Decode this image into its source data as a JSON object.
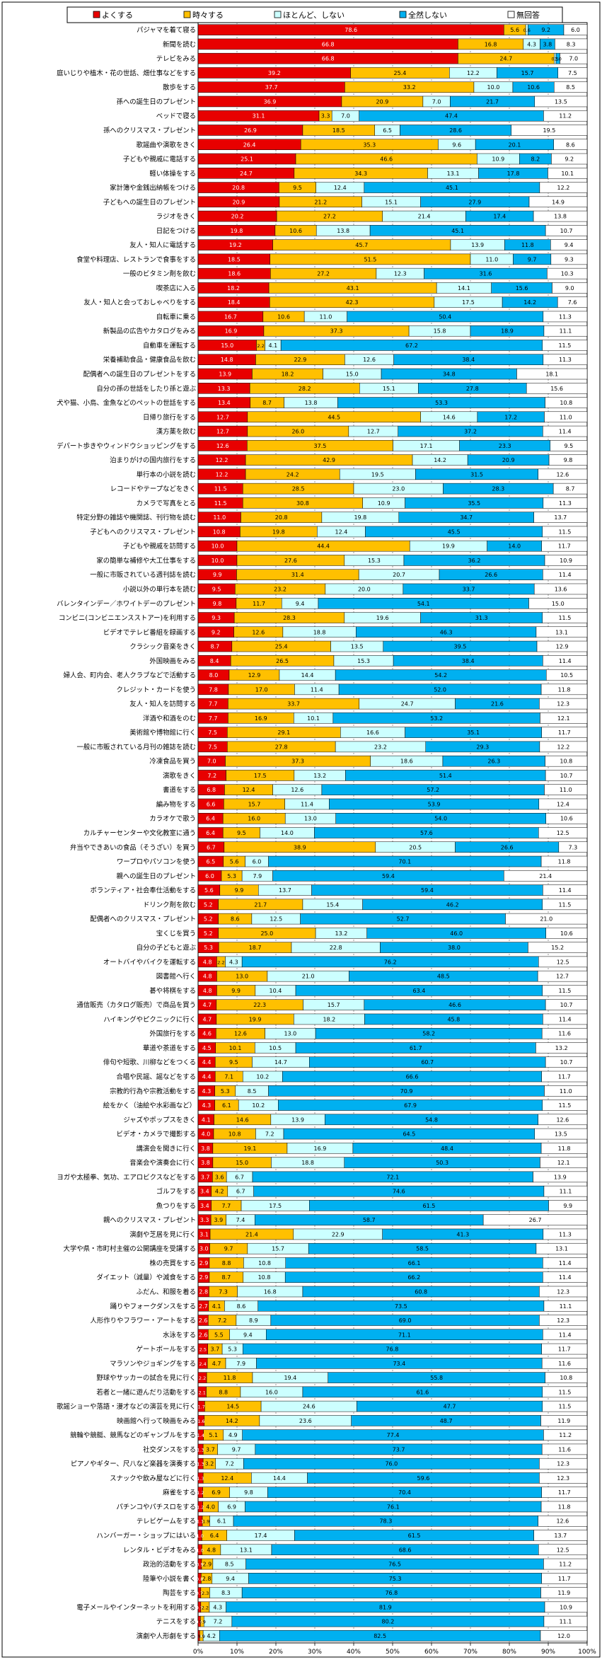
{
  "chart_data": {
    "type": "bar",
    "stacked": "percent",
    "orientation": "horizontal",
    "title": "",
    "xlabel": "",
    "ylabel": "",
    "xlim": [
      0,
      100
    ],
    "x_ticks": [
      "0%",
      "10%",
      "20%",
      "30%",
      "40%",
      "50%",
      "60%",
      "70%",
      "80%",
      "90%",
      "100%"
    ],
    "legend_position": "top",
    "series": [
      {
        "name": "よくする",
        "color": "#e80000"
      },
      {
        "name": "時々する",
        "color": "#ffc000"
      },
      {
        "name": "ほとんど、しない",
        "color": "#ccffff"
      },
      {
        "name": "全然しない",
        "color": "#00b0f0"
      },
      {
        "name": "無回答",
        "color": "#ffffff"
      }
    ],
    "categories": [
      "パジャマを着て寝る",
      "新聞を読む",
      "テレビをみる",
      "庭いじりや植木・花の世話、畑仕事などをする",
      "散歩をする",
      "孫への誕生日のプレゼント",
      "ベッドで寝る",
      "孫へのクリスマス・プレゼント",
      "歌謡曲や演歌をきく",
      "子どもや親戚に電話する",
      "軽い体操をする",
      "家計簿や金銭出納帳をつける",
      "子どもへの誕生日のプレゼント",
      "ラジオをきく",
      "日記をつける",
      "友人・知人に電話する",
      "食堂や料理店、レストランで食事をする",
      "一般のビタミン剤を飲む",
      "喫茶店に入る",
      "友人・知人と会っておしゃべりをする",
      "自転車に乗る",
      "新製品の広告やカタログをみる",
      "自動車を運転する",
      "栄養補助食品・健康食品を飲む",
      "配偶者への誕生日のプレゼントをする",
      "自分の孫の世話をしたり孫と遊ぶ",
      "犬や猫、小鳥、金魚などのペットの世話をする",
      "日帰り旅行をする",
      "漢方薬を飲む",
      "デパート歩きやウィンドウショッピングをする",
      "泊まりがけの国内旅行をする",
      "単行本の小説を読む",
      "レコードやテープなどをきく",
      "カメラで写真をとる",
      "特定分野の雑誌や機関誌、刊行物を読む",
      "子どもへのクリスマス・プレゼント",
      "子どもや親戚を訪問する",
      "家の簡単な補修や大工仕事をする",
      "一般に市販されている週刊誌を読む",
      "小説以外の単行本を読む",
      "バレンタインデー／ホワイトデーのプレゼント",
      "コンビニ(コンビニエンスストアー)を利用する",
      "ビデオでテレビ番組を録画する",
      "クラシック音楽をきく",
      "外国映画をみる",
      "婦人会、町内会、老人クラブなどで活動する",
      "クレジット・カードを使う",
      "友人・知人を訪問する",
      "洋酒や和酒をのむ",
      "美術館や博物館に行く",
      "一般に市販されている月刊の雑誌を読む",
      "冷凍食品を買う",
      "演歌をきく",
      "書道をする",
      "編み物をする",
      "カラオケで歌う",
      "カルチャーセンターや文化教室に通う",
      "弁当やできあいの食品（そうざい）を買う",
      "ワープロやパソコンを使う",
      "親への誕生日のプレゼント",
      "ボランティア・社会奉仕活動をする",
      "ドリンク剤を飲む",
      "配偶者へのクリスマス・プレゼント",
      "宝くじを買う",
      "自分の子どもと遊ぶ",
      "オートバイやバイクを運転する",
      "図書館へ行く",
      "碁や将棋をする",
      "通信販売（カタログ販売）で商品を買う",
      "ハイキングやピクニックに行く",
      "外国旅行をする",
      "華道や茶道をする",
      "俳句や短歌、川柳などをつくる",
      "合唱や民謡、謡などをする",
      "宗教的行為や宗教活動をする",
      "絵をかく（油絵や水彩画など）",
      "ジャズやポップスをきく",
      "ビデオ・カメラで撮影する",
      "講演会を聞きに行く",
      "音楽会や演奏会に行く",
      "ヨガや太極拳、気功、エアロビクスなどをする",
      "ゴルフをする",
      "魚つりをする",
      "親へのクリスマス・プレゼント",
      "演劇や芝居を見に行く",
      "大学や県・市町村主催の公開講座を受講する",
      "株の売買をする",
      "ダイエット（減量）や減食をする",
      "ふだん、和服を着る",
      "踊りやフォークダンスをする",
      "人形作りやフラワー・アートをする",
      "水泳をする",
      "ゲートボールをする",
      "マラソンやジョギングをする",
      "野球やサッカーの試合を見に行く",
      "若者と一緒に遊んだり活動をする",
      "歌謡ショーや落語・漫才などの演芸を見に行く",
      "映画館へ行って映画をみる",
      "競輪や競艇、競馬などのギャンブルをする",
      "社交ダンスをする",
      "ピアノやギター、尺八など楽器を演奏する",
      "スナックや飲み屋などに行く",
      "麻雀をする",
      "パチンコやパチスロをする",
      "テレビゲームをする",
      "ハンバーガー・ショップにはいる",
      "レンタル・ビデオをみる",
      "政治的活動をする",
      "陸筆や小説を書く",
      "陶芸をする",
      "電子メールやインターネットを利用する",
      "テニスをする",
      "演劇や人形劇をする"
    ],
    "values": [
      [
        78.6,
        5.6,
        0.6,
        9.2,
        6.0
      ],
      [
        66.8,
        16.8,
        4.3,
        3.8,
        8.3
      ],
      [
        66.8,
        24.7,
        0.5,
        1.0,
        7.0
      ],
      [
        39.2,
        25.4,
        12.2,
        15.7,
        7.5
      ],
      [
        37.7,
        33.2,
        10.0,
        10.6,
        8.5
      ],
      [
        36.9,
        20.9,
        7.0,
        21.7,
        13.5
      ],
      [
        31.1,
        3.3,
        7.0,
        47.4,
        11.2
      ],
      [
        26.9,
        18.5,
        6.5,
        28.6,
        19.5
      ],
      [
        26.4,
        35.3,
        9.6,
        20.1,
        8.6
      ],
      [
        25.1,
        46.6,
        10.9,
        8.2,
        9.2
      ],
      [
        24.7,
        34.3,
        13.1,
        17.8,
        10.1
      ],
      [
        20.8,
        9.5,
        12.4,
        45.1,
        12.2
      ],
      [
        20.9,
        21.2,
        15.1,
        27.9,
        14.9
      ],
      [
        20.2,
        27.2,
        21.4,
        17.4,
        13.8
      ],
      [
        19.8,
        10.6,
        13.8,
        45.1,
        10.7
      ],
      [
        19.2,
        45.7,
        13.9,
        11.8,
        9.4
      ],
      [
        18.5,
        51.5,
        11.0,
        9.7,
        9.3
      ],
      [
        18.6,
        27.2,
        12.3,
        31.6,
        10.3
      ],
      [
        18.2,
        43.1,
        14.1,
        15.6,
        9.0
      ],
      [
        18.4,
        42.3,
        17.5,
        14.2,
        7.6
      ],
      [
        16.7,
        10.6,
        11.0,
        50.4,
        11.3
      ],
      [
        16.9,
        37.3,
        15.8,
        18.9,
        11.1
      ],
      [
        15.0,
        2.2,
        4.1,
        67.2,
        11.5
      ],
      [
        14.8,
        22.9,
        12.6,
        38.4,
        11.3
      ],
      [
        13.9,
        18.2,
        15.0,
        34.8,
        18.1
      ],
      [
        13.3,
        28.2,
        15.1,
        27.8,
        15.6
      ],
      [
        13.4,
        8.7,
        13.8,
        53.3,
        10.8
      ],
      [
        12.7,
        44.5,
        14.6,
        17.2,
        11.0
      ],
      [
        12.7,
        26.0,
        12.7,
        37.2,
        11.4
      ],
      [
        12.6,
        37.5,
        17.1,
        23.3,
        9.5
      ],
      [
        12.2,
        42.9,
        14.2,
        20.9,
        9.8
      ],
      [
        12.2,
        24.2,
        19.5,
        31.5,
        12.6
      ],
      [
        11.5,
        28.5,
        23.0,
        28.3,
        8.7
      ],
      [
        11.5,
        30.8,
        10.9,
        35.5,
        11.3
      ],
      [
        11.0,
        20.8,
        19.8,
        34.7,
        13.7
      ],
      [
        10.8,
        19.8,
        12.4,
        45.5,
        11.5
      ],
      [
        10.0,
        44.4,
        19.9,
        14.0,
        11.7
      ],
      [
        10.0,
        27.6,
        15.3,
        36.2,
        10.9
      ],
      [
        9.9,
        31.4,
        20.7,
        26.6,
        11.4
      ],
      [
        9.5,
        23.2,
        20.0,
        33.7,
        13.6
      ],
      [
        9.8,
        11.7,
        9.4,
        54.1,
        15.0
      ],
      [
        9.3,
        28.3,
        19.6,
        31.3,
        11.5
      ],
      [
        9.2,
        12.6,
        18.8,
        46.3,
        13.1
      ],
      [
        8.7,
        25.4,
        13.5,
        39.5,
        12.9
      ],
      [
        8.4,
        26.5,
        15.3,
        38.4,
        11.4
      ],
      [
        8.0,
        12.9,
        14.4,
        54.2,
        10.5
      ],
      [
        7.8,
        17.0,
        11.4,
        52.0,
        11.8
      ],
      [
        7.7,
        33.7,
        24.7,
        21.6,
        12.3
      ],
      [
        7.7,
        16.9,
        10.1,
        53.2,
        12.1
      ],
      [
        7.5,
        29.1,
        16.6,
        35.1,
        11.7
      ],
      [
        7.5,
        27.8,
        23.2,
        29.3,
        12.2
      ],
      [
        7.0,
        37.3,
        18.6,
        26.3,
        10.8
      ],
      [
        7.2,
        17.5,
        13.2,
        51.4,
        10.7
      ],
      [
        6.8,
        12.4,
        12.6,
        57.2,
        11.0
      ],
      [
        6.6,
        15.7,
        11.4,
        53.9,
        12.4
      ],
      [
        6.4,
        16.0,
        13.0,
        54.0,
        10.6
      ],
      [
        6.4,
        9.5,
        14.0,
        57.6,
        12.5
      ],
      [
        6.7,
        38.9,
        20.5,
        26.6,
        7.3
      ],
      [
        6.5,
        5.6,
        6.0,
        70.1,
        11.8
      ],
      [
        6.0,
        5.3,
        7.9,
        59.4,
        21.4
      ],
      [
        5.6,
        9.9,
        13.7,
        59.4,
        11.4
      ],
      [
        5.2,
        21.7,
        15.4,
        46.2,
        11.5
      ],
      [
        5.2,
        8.6,
        12.5,
        52.7,
        21.0
      ],
      [
        5.2,
        25.0,
        13.2,
        46.0,
        10.6
      ],
      [
        5.3,
        18.7,
        22.8,
        38.0,
        15.2
      ],
      [
        4.8,
        2.2,
        4.3,
        76.2,
        12.5
      ],
      [
        4.8,
        13.0,
        21.0,
        48.5,
        12.7
      ],
      [
        4.8,
        9.9,
        10.4,
        63.4,
        11.5
      ],
      [
        4.7,
        22.3,
        15.7,
        46.6,
        10.7
      ],
      [
        4.7,
        19.9,
        18.2,
        45.8,
        11.4
      ],
      [
        4.6,
        12.6,
        13.0,
        58.2,
        11.6
      ],
      [
        4.5,
        10.1,
        10.5,
        61.7,
        13.2
      ],
      [
        4.4,
        9.5,
        14.7,
        60.7,
        10.7
      ],
      [
        4.4,
        7.1,
        10.2,
        66.6,
        11.7
      ],
      [
        4.3,
        5.3,
        8.5,
        70.9,
        11.0
      ],
      [
        4.3,
        6.1,
        10.2,
        67.9,
        11.5
      ],
      [
        4.1,
        14.6,
        13.9,
        54.8,
        12.6
      ],
      [
        4.0,
        10.8,
        7.2,
        64.5,
        13.5
      ],
      [
        3.8,
        19.1,
        16.9,
        48.4,
        11.8
      ],
      [
        3.8,
        15.0,
        18.8,
        50.3,
        12.1
      ],
      [
        3.7,
        3.6,
        6.7,
        72.1,
        13.9
      ],
      [
        3.4,
        4.2,
        6.7,
        74.6,
        11.1
      ],
      [
        3.4,
        7.7,
        17.5,
        61.5,
        9.9
      ],
      [
        3.3,
        3.9,
        7.4,
        58.7,
        26.7
      ],
      [
        3.1,
        21.4,
        22.9,
        41.3,
        11.3
      ],
      [
        3.0,
        9.7,
        15.7,
        58.5,
        13.1
      ],
      [
        2.9,
        8.8,
        10.8,
        66.1,
        11.4
      ],
      [
        2.9,
        8.7,
        10.8,
        66.2,
        11.4
      ],
      [
        2.8,
        7.3,
        16.8,
        60.8,
        12.3
      ],
      [
        2.7,
        4.1,
        8.6,
        73.5,
        11.1
      ],
      [
        2.6,
        7.2,
        8.9,
        69.0,
        12.3
      ],
      [
        2.6,
        5.5,
        9.4,
        71.1,
        11.4
      ],
      [
        2.5,
        3.7,
        5.3,
        76.8,
        11.7
      ],
      [
        2.4,
        4.7,
        7.9,
        73.4,
        11.6
      ],
      [
        2.2,
        11.8,
        19.4,
        55.8,
        10.8
      ],
      [
        2.1,
        8.8,
        16.0,
        61.6,
        11.5
      ],
      [
        1.7,
        14.5,
        24.6,
        47.7,
        11.5
      ],
      [
        1.6,
        14.2,
        23.6,
        48.7,
        11.9
      ],
      [
        1.4,
        5.1,
        4.9,
        77.4,
        11.2
      ],
      [
        1.3,
        3.7,
        9.7,
        73.7,
        11.6
      ],
      [
        1.3,
        3.2,
        7.2,
        76.0,
        12.3
      ],
      [
        1.3,
        12.4,
        14.4,
        59.6,
        12.3
      ],
      [
        1.2,
        6.9,
        9.8,
        70.4,
        11.7
      ],
      [
        1.2,
        4.0,
        6.9,
        76.1,
        11.8
      ],
      [
        1.1,
        1.9,
        6.1,
        78.3,
        12.6
      ],
      [
        1.0,
        6.4,
        17.4,
        61.5,
        13.7
      ],
      [
        1.0,
        4.8,
        13.1,
        68.6,
        12.5
      ],
      [
        0.9,
        2.9,
        8.5,
        76.5,
        11.2
      ],
      [
        0.8,
        2.8,
        9.4,
        75.3,
        11.7
      ],
      [
        0.7,
        2.3,
        8.3,
        76.8,
        11.9
      ],
      [
        0.7,
        2.2,
        4.3,
        81.9,
        10.9
      ],
      [
        0.6,
        0.9,
        7.2,
        80.2,
        11.1
      ],
      [
        0.4,
        0.9,
        4.2,
        82.5,
        12.0
      ]
    ]
  }
}
